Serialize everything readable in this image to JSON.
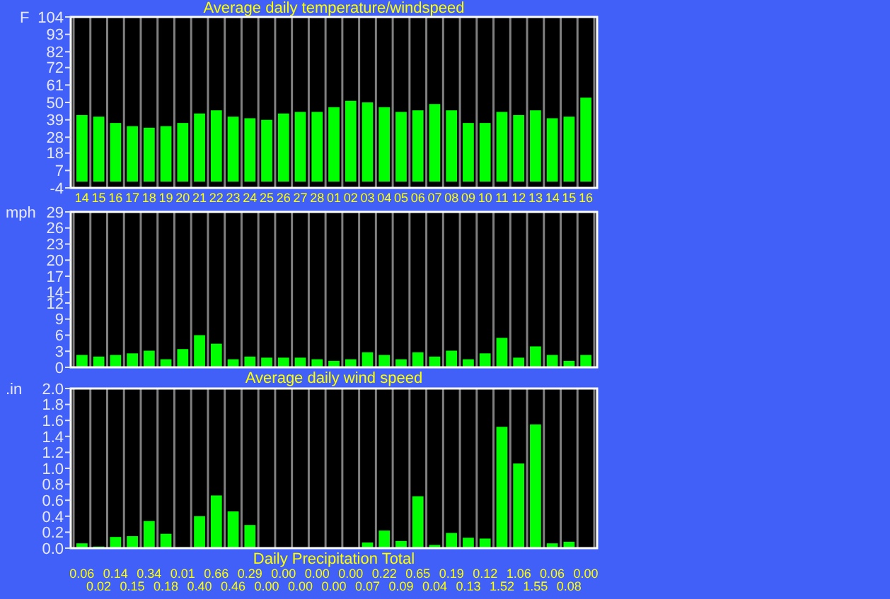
{
  "chart_data": [
    {
      "type": "bar",
      "title": "Average daily temperature/windspeed",
      "ylabel": "F",
      "categories": [
        "14",
        "15",
        "16",
        "17",
        "18",
        "19",
        "20",
        "21",
        "22",
        "23",
        "24",
        "25",
        "26",
        "27",
        "28",
        "01",
        "02",
        "03",
        "04",
        "05",
        "06",
        "07",
        "08",
        "09",
        "10",
        "11",
        "12",
        "13",
        "14",
        "15",
        "16"
      ],
      "values": [
        42,
        41,
        37,
        35,
        34,
        35,
        37,
        43,
        45,
        41,
        40,
        39,
        43,
        44,
        44,
        47,
        51,
        50,
        47,
        44,
        45,
        49,
        45,
        37,
        37,
        44,
        42,
        45,
        40,
        41,
        53
      ],
      "color": "#00ff00",
      "ylim": [
        -4,
        104
      ],
      "yticks": [
        -4,
        7,
        18,
        28,
        39,
        50,
        61,
        72,
        82,
        93,
        104
      ],
      "grid": "x"
    },
    {
      "type": "bar",
      "xlabel": "Average daily wind speed",
      "ylabel": "mph",
      "categories": [
        null,
        null,
        null,
        null,
        null,
        null,
        null,
        null,
        null,
        null,
        null,
        null,
        null,
        null,
        null,
        null,
        null,
        null,
        null,
        null,
        null,
        null,
        null,
        null,
        null,
        null,
        null,
        null,
        null,
        null,
        null
      ],
      "values": [
        2.3,
        2.0,
        2.3,
        2.6,
        3.1,
        1.5,
        3.4,
        6.0,
        4.4,
        1.5,
        2.0,
        1.8,
        1.8,
        1.8,
        1.5,
        1.2,
        1.5,
        2.8,
        2.3,
        1.5,
        2.8,
        2.0,
        3.1,
        1.5,
        2.6,
        5.5,
        1.8,
        3.9,
        2.3,
        1.2,
        2.3
      ],
      "color": "#00ff00",
      "ylim": [
        0,
        29
      ],
      "yticks": [
        0,
        3,
        6,
        9,
        12,
        14,
        17,
        20,
        23,
        26,
        29
      ],
      "grid": "x",
      "tick_labels": "y"
    },
    {
      "type": "bar",
      "xlabel": "Daily Precipitation Total",
      "ylabel": ".in",
      "categories": [
        null,
        null,
        null,
        null,
        null,
        null,
        null,
        null,
        null,
        null,
        null,
        null,
        null,
        null,
        null,
        null,
        null,
        null,
        null,
        null,
        null,
        null,
        null,
        null,
        null,
        null,
        null,
        null,
        null,
        null,
        null
      ],
      "values": [
        0.06,
        0.02,
        0.14,
        0.15,
        0.34,
        0.18,
        0.01,
        0.4,
        0.66,
        0.46,
        0.29,
        0.0,
        0.0,
        0.0,
        0.0,
        0.0,
        0.0,
        0.07,
        0.22,
        0.09,
        0.65,
        0.04,
        0.19,
        0.13,
        0.12,
        1.52,
        1.06,
        1.55,
        0.06,
        0.08,
        0.0
      ],
      "value_labels": [
        "0.06",
        "0.02",
        "0.14",
        "0.15",
        "0.34",
        "0.18",
        "0.01",
        "0.40",
        "0.66",
        "0.46",
        "0.29",
        "0.00",
        "0.00",
        "0.00",
        "0.00",
        "0.00",
        "0.00",
        "0.07",
        "0.22",
        "0.09",
        "0.65",
        "0.04",
        "0.19",
        "0.13",
        "0.12",
        "1.52",
        "1.06",
        "1.55",
        "0.06",
        "0.08",
        "0.00"
      ],
      "color": "#00ff00",
      "ylim": [
        0,
        2
      ],
      "yticks": [
        {
          "value": 0,
          "label": "0.0"
        },
        0.2,
        0.4,
        0.6,
        0.8,
        {
          "value": 1,
          "label": "1.0"
        },
        1.2,
        1.4,
        1.6,
        1.8,
        {
          "value": 2,
          "label": "2.0"
        }
      ],
      "grid": "x",
      "tick_labels": "y"
    }
  ]
}
